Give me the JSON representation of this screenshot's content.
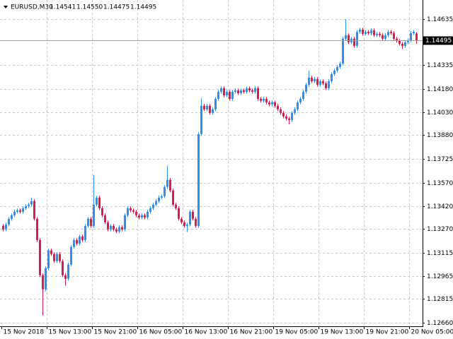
{
  "chart_data": {
    "type": "candlestick",
    "title": "EURUSD,M30",
    "header_ohlc": [
      "1.14541",
      "1.14550",
      "1.14475",
      "1.14495"
    ],
    "current_price": {
      "value": 1.14495,
      "label": "1.14495"
    },
    "bull_color": "#2f8ef0",
    "bear_color": "#d81b52",
    "grid": true,
    "ylim": [
      1.12637,
      1.14759
    ],
    "yticks": [
      1.14635,
      1.14335,
      {
        "value": 1.1418,
        "label": "1.14180"
      },
      {
        "value": 1.1403,
        "label": "1.14030"
      },
      {
        "value": 1.1388,
        "label": "1.13880"
      },
      1.13725,
      {
        "value": 1.1357,
        "label": "1.13570"
      },
      {
        "value": 1.1342,
        "label": "1.13420"
      },
      {
        "value": 1.1327,
        "label": "1.13270"
      },
      1.13115,
      1.12965,
      1.12815,
      {
        "value": 1.1266,
        "label": "1.12660"
      }
    ],
    "categories": [
      "15 Nov 2018",
      null,
      null,
      null,
      null,
      null,
      null,
      null,
      null,
      null,
      null,
      null,
      null,
      null,
      null,
      null,
      "15 Nov 13:00",
      null,
      null,
      null,
      null,
      null,
      null,
      null,
      null,
      null,
      null,
      null,
      null,
      null,
      null,
      null,
      "15 Nov 21:00",
      null,
      null,
      null,
      null,
      null,
      null,
      null,
      null,
      null,
      null,
      null,
      null,
      null,
      null,
      null,
      "16 Nov 05:00",
      null,
      null,
      null,
      null,
      null,
      null,
      null,
      null,
      null,
      null,
      null,
      null,
      null,
      null,
      null,
      "16 Nov 13:00",
      null,
      null,
      null,
      null,
      null,
      null,
      null,
      null,
      null,
      null,
      null,
      null,
      null,
      null,
      null,
      "16 Nov 21:00",
      null,
      null,
      null,
      null,
      null,
      null,
      null,
      null,
      null,
      null,
      null,
      null,
      null,
      null,
      null,
      "19 Nov 05:00",
      null,
      null,
      null,
      null,
      null,
      null,
      null,
      null,
      null,
      null,
      null,
      null,
      null,
      null,
      null,
      "19 Nov 13:00",
      null,
      null,
      null,
      null,
      null,
      null,
      null,
      null,
      null,
      null,
      null,
      null,
      null,
      null,
      null,
      "19 Nov 21:00",
      null,
      null,
      null,
      null,
      null,
      null,
      null,
      null,
      null,
      null,
      null,
      null,
      null,
      null,
      null,
      "20 Nov 05:00",
      null,
      null
    ],
    "open": [
      1.1329,
      1.13267,
      1.13299,
      1.13336,
      1.13359,
      1.13382,
      1.13391,
      1.13382,
      1.13405,
      1.13419,
      1.13428,
      1.13451,
      1.13336,
      1.13198,
      1.12969,
      1.12877,
      1.13015,
      1.1313,
      1.13107,
      1.13061,
      1.13107,
      1.13061,
      1.12969,
      1.12946,
      1.13038,
      1.13153,
      1.13198,
      1.13175,
      1.13221,
      1.13198,
      1.1329,
      1.13336,
      1.1329,
      1.13428,
      1.13474,
      1.13405,
      1.13359,
      1.13313,
      1.13267,
      1.1329,
      1.13267,
      1.13254,
      1.13281,
      1.13267,
      1.13359,
      1.13405,
      1.13391,
      1.13382,
      1.13359,
      1.13345,
      1.13359,
      1.13345,
      1.13382,
      1.13405,
      1.13428,
      1.13451,
      1.13474,
      1.13483,
      1.13543,
      1.13589,
      1.1352,
      1.13428,
      1.13405,
      1.13336,
      1.13313,
      1.1329,
      1.13299,
      1.13382,
      1.13336,
      1.1329,
      1.13887,
      1.14071,
      1.14048,
      1.14071,
      1.14025,
      1.14048,
      1.14116,
      1.14162,
      1.14185,
      1.14139,
      1.14162,
      1.14116,
      1.14162,
      1.14171,
      1.14153,
      1.14171,
      1.14162,
      1.14185,
      1.14171,
      1.14162,
      1.14185,
      1.14116,
      1.14103,
      1.14116,
      1.14093,
      1.1408,
      1.14093,
      1.14071,
      1.14048,
      1.14025,
      1.14002,
      1.13988,
      1.13979,
      1.14025,
      1.14048,
      1.14093,
      1.14116,
      1.14162,
      1.14208,
      1.14254,
      1.14231,
      1.14245,
      1.14208,
      1.14231,
      1.14217,
      1.14185,
      1.14231,
      1.14277,
      1.143,
      1.14323,
      1.14346,
      1.14507,
      1.1453,
      1.14484,
      1.14507,
      1.14461,
      1.14552,
      1.14566,
      1.14539,
      1.14552,
      1.14543,
      1.14562,
      1.1453,
      1.14539,
      1.1453,
      1.14507,
      1.1453,
      1.14552,
      1.14543,
      1.14507,
      1.14493,
      1.14474,
      1.14461,
      1.14484,
      1.14497,
      1.14543,
      1.14541
    ],
    "high": [
      1.13302,
      1.13311,
      1.13348,
      1.13371,
      1.13394,
      1.13403,
      1.13403,
      1.13417,
      1.13431,
      1.1344,
      1.13474,
      1.13463,
      1.13348,
      1.1321,
      1.12981,
      1.13027,
      1.13142,
      1.13142,
      1.13119,
      1.13119,
      1.13119,
      1.13073,
      1.12981,
      1.1305,
      1.13165,
      1.1321,
      1.1321,
      1.13233,
      1.13233,
      1.13302,
      1.13348,
      1.13348,
      1.13621,
      1.13486,
      1.13486,
      1.13417,
      1.13371,
      1.13325,
      1.13302,
      1.13302,
      1.13279,
      1.13293,
      1.13293,
      1.13371,
      1.13417,
      1.13417,
      1.13403,
      1.13394,
      1.13371,
      1.13371,
      1.13371,
      1.13394,
      1.13417,
      1.1344,
      1.13463,
      1.13486,
      1.13495,
      1.13555,
      1.1368,
      1.13601,
      1.13532,
      1.1344,
      1.13417,
      1.13348,
      1.13325,
      1.13311,
      1.13394,
      1.13394,
      1.13348,
      1.13899,
      1.1412,
      1.14083,
      1.14083,
      1.14083,
      1.1406,
      1.14128,
      1.14174,
      1.14197,
      1.14197,
      1.14174,
      1.14174,
      1.14174,
      1.14183,
      1.14183,
      1.14183,
      1.14183,
      1.14197,
      1.14197,
      1.14183,
      1.14197,
      1.14197,
      1.14128,
      1.14128,
      1.14128,
      1.14105,
      1.14105,
      1.14105,
      1.14083,
      1.1406,
      1.14037,
      1.14014,
      1.14,
      1.14037,
      1.1406,
      1.14105,
      1.14128,
      1.14174,
      1.1422,
      1.143,
      1.14266,
      1.14257,
      1.14257,
      1.14243,
      1.14243,
      1.14229,
      1.14243,
      1.14289,
      1.14312,
      1.14335,
      1.14358,
      1.14519,
      1.14635,
      1.14542,
      1.14519,
      1.14519,
      1.14564,
      1.14578,
      1.14578,
      1.14564,
      1.14564,
      1.14574,
      1.14574,
      1.14551,
      1.14551,
      1.14542,
      1.14542,
      1.14564,
      1.14564,
      1.14555,
      1.14519,
      1.14505,
      1.14486,
      1.14496,
      1.14509,
      1.14555,
      1.14564,
      1.1455
    ],
    "low": [
      1.13255,
      1.13255,
      1.13287,
      1.13324,
      1.13347,
      1.1337,
      1.1337,
      1.1337,
      1.13393,
      1.13407,
      1.13416,
      1.13324,
      1.13186,
      1.12957,
      1.12707,
      1.12865,
      1.13003,
      1.13095,
      1.13049,
      1.13049,
      1.13049,
      1.12957,
      1.129,
      1.12934,
      1.13026,
      1.13141,
      1.13163,
      1.13163,
      1.13186,
      1.13186,
      1.13278,
      1.13278,
      1.13278,
      1.13416,
      1.13393,
      1.13347,
      1.13301,
      1.13255,
      1.13255,
      1.13255,
      1.13242,
      1.13242,
      1.13255,
      1.13255,
      1.13347,
      1.13379,
      1.1337,
      1.13347,
      1.13333,
      1.13333,
      1.13333,
      1.13333,
      1.1337,
      1.13393,
      1.13416,
      1.13439,
      1.13462,
      1.13471,
      1.13531,
      1.13508,
      1.13416,
      1.13393,
      1.13324,
      1.13301,
      1.13278,
      1.1325,
      1.13287,
      1.13324,
      1.13278,
      1.13278,
      1.13875,
      1.14036,
      1.14036,
      1.14013,
      1.14013,
      1.14036,
      1.14104,
      1.1415,
      1.14127,
      1.14127,
      1.14104,
      1.14104,
      1.1415,
      1.14141,
      1.14141,
      1.1415,
      1.1415,
      1.14159,
      1.1415,
      1.1415,
      1.14104,
      1.14091,
      1.14091,
      1.14081,
      1.14068,
      1.14068,
      1.14059,
      1.14036,
      1.14013,
      1.1399,
      1.13976,
      1.1395,
      1.13967,
      1.14013,
      1.14036,
      1.14081,
      1.14104,
      1.1415,
      1.14196,
      1.14219,
      1.14219,
      1.14196,
      1.14196,
      1.14205,
      1.14173,
      1.14173,
      1.14219,
      1.14265,
      1.14288,
      1.14311,
      1.14334,
      1.14495,
      1.14472,
      1.14472,
      1.14449,
      1.14449,
      1.1454,
      1.14527,
      1.14527,
      1.14531,
      1.14531,
      1.14518,
      1.14518,
      1.14518,
      1.14495,
      1.14495,
      1.14518,
      1.14531,
      1.14495,
      1.14481,
      1.14462,
      1.1444,
      1.14449,
      1.14472,
      1.14485,
      1.14531,
      1.14475
    ],
    "close": [
      1.13267,
      1.13299,
      1.13336,
      1.13359,
      1.13382,
      1.13391,
      1.13382,
      1.13405,
      1.13419,
      1.13428,
      1.13451,
      1.13336,
      1.13198,
      1.12969,
      1.12877,
      1.13015,
      1.1313,
      1.13107,
      1.13061,
      1.13107,
      1.13061,
      1.12969,
      1.12946,
      1.13038,
      1.13153,
      1.13198,
      1.13175,
      1.13221,
      1.13198,
      1.1329,
      1.13336,
      1.1329,
      1.13428,
      1.13474,
      1.13405,
      1.13359,
      1.13313,
      1.13267,
      1.1329,
      1.13267,
      1.13254,
      1.13281,
      1.13267,
      1.13359,
      1.13405,
      1.13391,
      1.13382,
      1.13359,
      1.13345,
      1.13359,
      1.13345,
      1.13382,
      1.13405,
      1.13428,
      1.13451,
      1.13474,
      1.13483,
      1.13543,
      1.13589,
      1.1352,
      1.13428,
      1.13405,
      1.13336,
      1.13313,
      1.1329,
      1.13299,
      1.13382,
      1.13336,
      1.1329,
      1.13887,
      1.14071,
      1.14048,
      1.14071,
      1.14025,
      1.14048,
      1.14116,
      1.14162,
      1.14185,
      1.14139,
      1.14162,
      1.14116,
      1.14162,
      1.14171,
      1.14153,
      1.14171,
      1.14162,
      1.14185,
      1.14171,
      1.14162,
      1.14185,
      1.14116,
      1.14103,
      1.14116,
      1.14093,
      1.1408,
      1.14093,
      1.14071,
      1.14048,
      1.14025,
      1.14002,
      1.13988,
      1.13979,
      1.14025,
      1.14048,
      1.14093,
      1.14116,
      1.14162,
      1.14208,
      1.14254,
      1.14231,
      1.14245,
      1.14208,
      1.14231,
      1.14217,
      1.14185,
      1.14231,
      1.14277,
      1.143,
      1.14323,
      1.14346,
      1.14507,
      1.1453,
      1.14484,
      1.14507,
      1.14461,
      1.14552,
      1.14566,
      1.14539,
      1.14552,
      1.14543,
      1.14562,
      1.1453,
      1.14539,
      1.1453,
      1.14507,
      1.1453,
      1.14552,
      1.14543,
      1.14507,
      1.14493,
      1.14474,
      1.14461,
      1.14484,
      1.14497,
      1.14543,
      1.14552,
      1.14495
    ]
  }
}
